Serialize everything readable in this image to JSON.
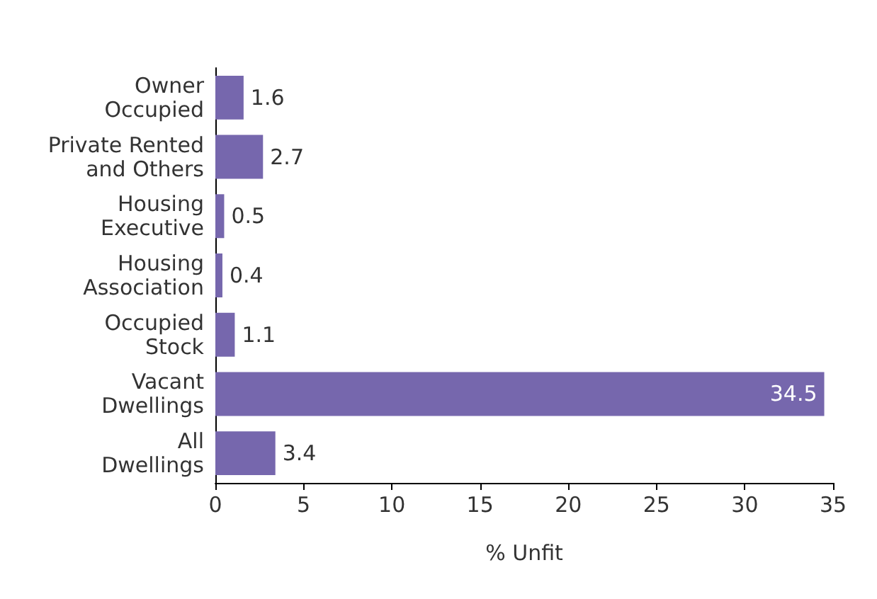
{
  "chart_data": {
    "type": "bar",
    "orientation": "horizontal",
    "xlabel": "% Unfit",
    "categories": [
      "Owner\nOccupied",
      "Private Rented\nand Others",
      "Housing\nExecutive",
      "Housing\nAssociation",
      "Occupied\nStock",
      "Vacant\nDwellings",
      "All\nDwellings"
    ],
    "values": [
      1.6,
      2.7,
      0.5,
      0.4,
      1.1,
      34.5,
      3.4
    ],
    "color": "#7667ad",
    "xlim": [
      0,
      35
    ],
    "xticks": [
      0,
      5,
      10,
      15,
      20,
      25,
      30,
      35
    ],
    "grid": false,
    "data_labels": true
  }
}
